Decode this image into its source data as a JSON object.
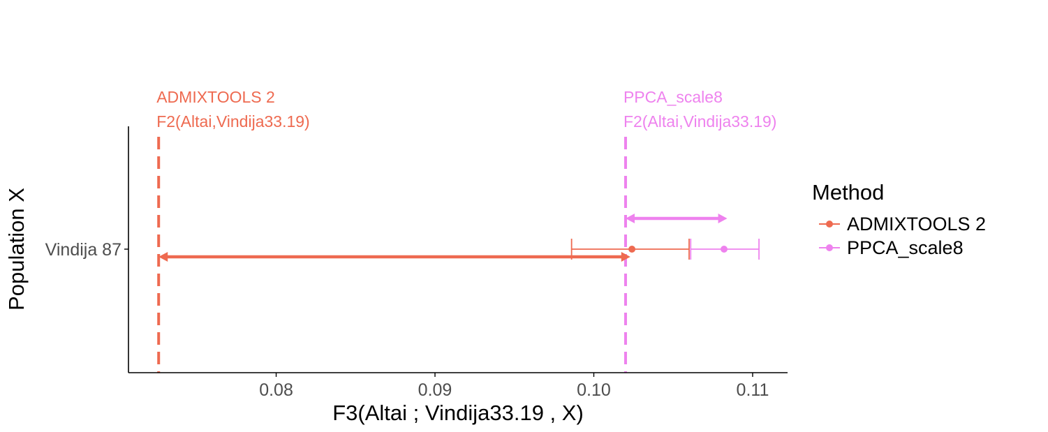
{
  "chart_data": {
    "type": "scatter",
    "xlabel": "F3(Altai ; Vindija33.19 , X)",
    "ylabel": "Population X",
    "categories": [
      "Vindija 87"
    ],
    "xlim": [
      0.0707,
      0.1122
    ],
    "xticks": [
      0.08,
      0.09,
      0.1,
      0.11
    ],
    "xtick_labels": [
      "0.08",
      "0.09",
      "0.10",
      "0.11"
    ],
    "grid": false,
    "legend": {
      "title": "Method",
      "position": "right"
    },
    "series": [
      {
        "name": "ADMIXTOOLS 2",
        "color": "#ee6a50",
        "category": "Vindija 87",
        "x": 0.1024,
        "lower": 0.0986,
        "upper": 0.106
      },
      {
        "name": "PPCA_scale8",
        "color": "#ee82ee",
        "category": "Vindija 87",
        "x": 0.1082,
        "lower": 0.1061,
        "upper": 0.1104
      }
    ],
    "reference_lines": [
      {
        "x": 0.0726,
        "color": "#ee6a50",
        "label_line1": "ADMIXTOOLS 2",
        "label_line2": "F2(Altai,Vindija33.19)"
      },
      {
        "x": 0.102,
        "color": "#ee82ee",
        "label_line1": "PPCA_scale8",
        "label_line2": "F2(Altai,Vindija33.19)"
      }
    ],
    "arrows": [
      {
        "from": 0.0726,
        "to": 0.1023,
        "color": "#ee6a50"
      },
      {
        "from": 0.102,
        "to": 0.1084,
        "color": "#ee82ee"
      }
    ]
  }
}
